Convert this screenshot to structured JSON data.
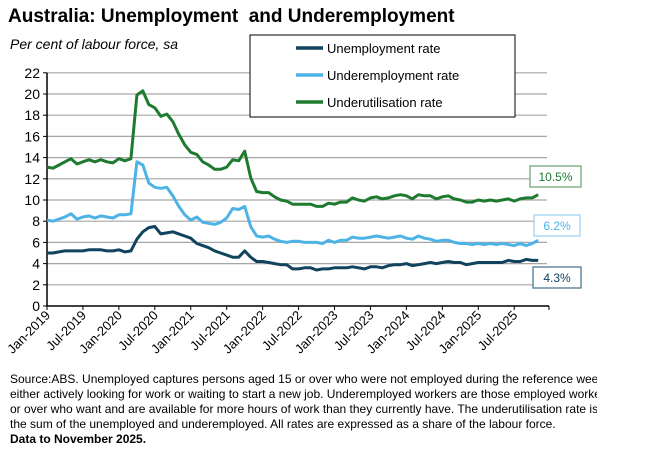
{
  "title": "Australia: Unemployment  and Underemployment",
  "subtitle": "Per cent of labour force, sa",
  "chart_data": {
    "type": "line",
    "title": "Australia: Unemployment  and Underemployment",
    "ylabel": "Per cent of labour force, sa",
    "ylim": [
      0,
      22
    ],
    "yticks": [
      0,
      2,
      4,
      6,
      8,
      10,
      12,
      14,
      16,
      18,
      20,
      22
    ],
    "grid": true,
    "legend": "top-right",
    "x_start": "Jan-2019",
    "x_end": "Nov-2025",
    "x_frequency": "monthly",
    "xtick_labels": [
      "Jan-2019",
      "Jul-2019",
      "Jan-2020",
      "Jul-2020",
      "Jan-2021",
      "Jul-2021",
      "Jan-2022",
      "Jul-2022",
      "Jan-2023",
      "Jul-2023",
      "Jan-2024",
      "Jul-2024",
      "Jan-2025",
      "Jul-2025"
    ],
    "series": [
      {
        "name": "Unemployment rate",
        "color": "#12435e",
        "end_label": "4.3%",
        "values": [
          5.0,
          5.0,
          5.1,
          5.2,
          5.2,
          5.2,
          5.2,
          5.3,
          5.3,
          5.3,
          5.2,
          5.2,
          5.3,
          5.1,
          5.2,
          6.3,
          7.0,
          7.4,
          7.5,
          6.8,
          6.9,
          7.0,
          6.8,
          6.6,
          6.4,
          5.9,
          5.7,
          5.5,
          5.2,
          5.0,
          4.8,
          4.6,
          4.6,
          5.2,
          4.6,
          4.2,
          4.2,
          4.1,
          4.0,
          3.9,
          3.9,
          3.5,
          3.5,
          3.6,
          3.6,
          3.4,
          3.5,
          3.5,
          3.6,
          3.6,
          3.6,
          3.7,
          3.6,
          3.5,
          3.7,
          3.7,
          3.6,
          3.8,
          3.9,
          3.9,
          4.0,
          3.8,
          3.9,
          4.0,
          4.1,
          4.0,
          4.1,
          4.2,
          4.1,
          4.1,
          3.9,
          4.0,
          4.1,
          4.1,
          4.1,
          4.1,
          4.1,
          4.3,
          4.2,
          4.2,
          4.4,
          4.3,
          4.3
        ]
      },
      {
        "name": "Underemployment rate",
        "color": "#4db3e6",
        "end_label": "6.2%",
        "values": [
          8.1,
          8.0,
          8.2,
          8.4,
          8.7,
          8.2,
          8.4,
          8.5,
          8.3,
          8.5,
          8.4,
          8.3,
          8.6,
          8.6,
          8.7,
          13.6,
          13.3,
          11.6,
          11.2,
          11.1,
          11.2,
          10.4,
          9.4,
          8.6,
          8.1,
          8.4,
          7.9,
          7.8,
          7.7,
          7.9,
          8.3,
          9.2,
          9.1,
          9.4,
          7.5,
          6.6,
          6.5,
          6.6,
          6.3,
          6.1,
          6.0,
          6.1,
          6.1,
          6.0,
          6.0,
          6.0,
          5.9,
          6.2,
          6.0,
          6.2,
          6.2,
          6.5,
          6.4,
          6.4,
          6.5,
          6.6,
          6.5,
          6.4,
          6.5,
          6.6,
          6.4,
          6.3,
          6.6,
          6.4,
          6.3,
          6.1,
          6.2,
          6.2,
          6.0,
          5.9,
          5.9,
          5.8,
          5.9,
          5.8,
          5.9,
          5.8,
          5.9,
          5.8,
          5.7,
          5.9,
          5.7,
          5.9,
          6.2
        ]
      },
      {
        "name": "Underutilisation rate",
        "color": "#1e7a2e",
        "end_label": "10.5%",
        "values": [
          13.1,
          13.0,
          13.3,
          13.6,
          13.9,
          13.4,
          13.6,
          13.8,
          13.6,
          13.8,
          13.6,
          13.5,
          13.9,
          13.7,
          13.9,
          19.9,
          20.3,
          19.0,
          18.7,
          17.9,
          18.1,
          17.4,
          16.2,
          15.2,
          14.5,
          14.3,
          13.6,
          13.3,
          12.9,
          12.9,
          13.1,
          13.8,
          13.7,
          14.6,
          12.1,
          10.8,
          10.7,
          10.7,
          10.3,
          10.0,
          9.9,
          9.6,
          9.6,
          9.6,
          9.6,
          9.4,
          9.4,
          9.7,
          9.6,
          9.8,
          9.8,
          10.2,
          10.0,
          9.9,
          10.2,
          10.3,
          10.1,
          10.2,
          10.4,
          10.5,
          10.4,
          10.1,
          10.5,
          10.4,
          10.4,
          10.1,
          10.3,
          10.4,
          10.1,
          10.0,
          9.8,
          9.8,
          10.0,
          9.9,
          10.0,
          9.9,
          10.0,
          10.1,
          9.9,
          10.1,
          10.2,
          10.2,
          10.5
        ]
      }
    ]
  },
  "footnote": {
    "lines": [
      "Source:ABS. Unemployed captures persons aged 15 or over who were not employed during the reference week",
      "either actively looking for work or waiting to start a new job.  Underemployed workers are those employed workers",
      "or over who want and are available for more hours of work than they currently have.  The underutilisation rate is the",
      "the sum of the unemployed and underemployed. All rates are expressed as a share of the labour force."
    ],
    "bold": "Data to November 2025."
  }
}
